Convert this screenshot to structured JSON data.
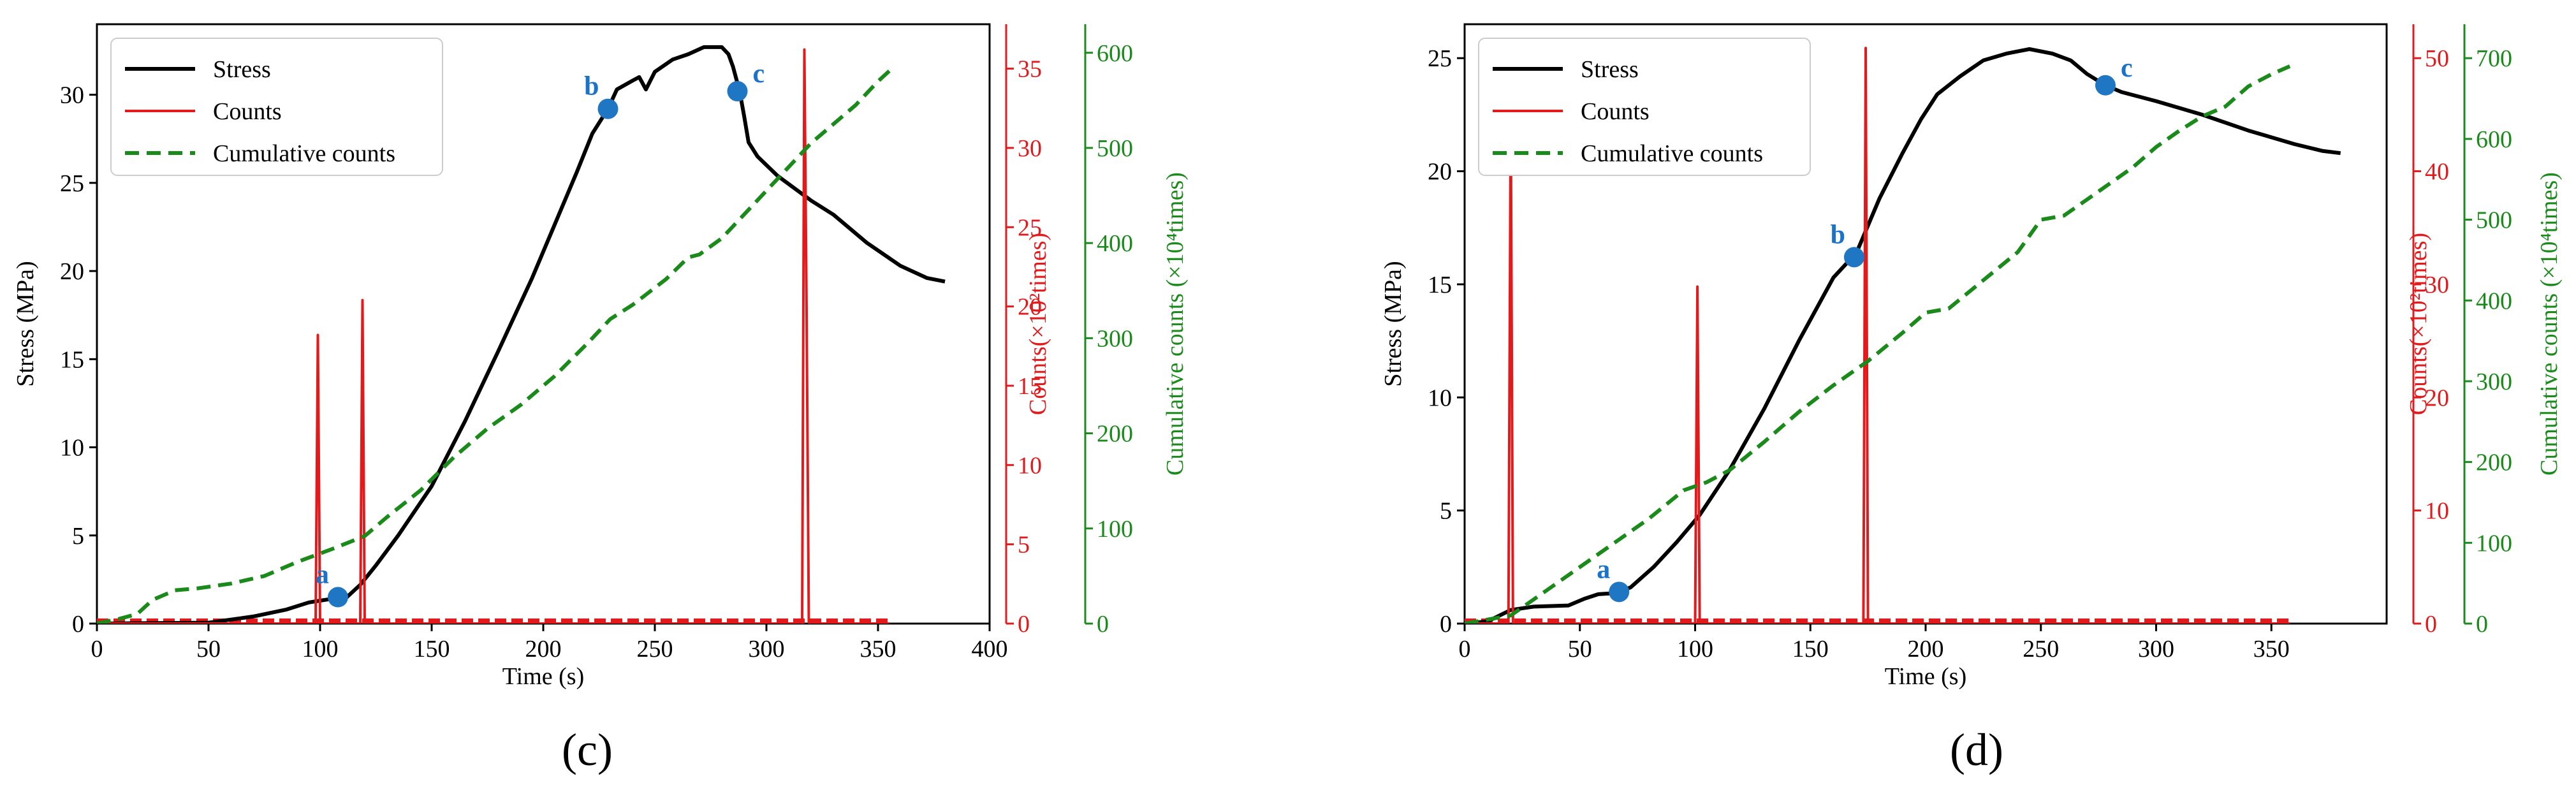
{
  "panel_labels": [
    "(c)",
    "(d)"
  ],
  "colors": {
    "stress": "#000000",
    "counts": "#e31a1c",
    "cumulative": "#1a8a1a",
    "point": "#1f77c4"
  },
  "chart_data": [
    {
      "type": "line",
      "panel": "(c)",
      "xlabel": "Time (s)",
      "ylabel": "Stress (MPa)",
      "y2label": "Counts(×10²times)",
      "y3label": "Cumulative counts (×10⁴times)",
      "xlim": [
        0,
        400
      ],
      "ylim": [
        0,
        34
      ],
      "y2lim": [
        0,
        37.8
      ],
      "y3lim": [
        0,
        630
      ],
      "xticks": [
        0,
        50,
        100,
        150,
        200,
        250,
        300,
        350,
        400
      ],
      "yticks": [
        0,
        5,
        10,
        15,
        20,
        25,
        30
      ],
      "y2ticks": [
        0,
        5,
        10,
        15,
        20,
        25,
        30,
        35
      ],
      "y3ticks": [
        0,
        100,
        200,
        300,
        400,
        500,
        600
      ],
      "legend": {
        "placement": "top-left",
        "entries": [
          "Stress",
          "Counts",
          "Cumulative counts"
        ]
      },
      "series": [
        {
          "name": "Stress",
          "axis": "y",
          "points": [
            [
              0,
              0
            ],
            [
              50,
              0.05
            ],
            [
              70,
              0.4
            ],
            [
              85,
              0.8
            ],
            [
              95,
              1.2
            ],
            [
              105,
              1.4
            ],
            [
              112,
              1.5
            ],
            [
              118,
              2.2
            ],
            [
              125,
              3.3
            ],
            [
              135,
              5.0
            ],
            [
              150,
              7.8
            ],
            [
              165,
              11.5
            ],
            [
              180,
              15.5
            ],
            [
              195,
              19.6
            ],
            [
              205,
              22.6
            ],
            [
              215,
              25.6
            ],
            [
              222,
              27.8
            ],
            [
              229,
              29.2
            ],
            [
              233,
              30.3
            ],
            [
              240,
              30.8
            ],
            [
              243,
              31.0
            ],
            [
              246,
              30.3
            ],
            [
              250,
              31.3
            ],
            [
              258,
              32.0
            ],
            [
              265,
              32.3
            ],
            [
              272,
              32.7
            ],
            [
              280,
              32.7
            ],
            [
              283,
              32.3
            ],
            [
              285,
              31.6
            ],
            [
              288,
              30.2
            ],
            [
              290,
              28.8
            ],
            [
              292,
              27.3
            ],
            [
              296,
              26.5
            ],
            [
              305,
              25.4
            ],
            [
              320,
              24.0
            ],
            [
              330,
              23.2
            ],
            [
              345,
              21.6
            ],
            [
              360,
              20.3
            ],
            [
              372,
              19.6
            ],
            [
              380,
              19.4
            ]
          ]
        },
        {
          "name": "Counts",
          "axis": "y2",
          "points": [
            [
              0,
              0
            ],
            [
              98,
              0
            ],
            [
              99,
              18.2
            ],
            [
              100,
              0
            ],
            [
              118,
              0
            ],
            [
              119,
              20.4
            ],
            [
              120,
              0
            ],
            [
              316,
              0
            ],
            [
              317,
              36.2
            ],
            [
              318,
              19.7
            ],
            [
              319,
              0
            ],
            [
              355,
              0
            ]
          ]
        },
        {
          "name": "Cumulative counts",
          "axis": "y3",
          "points": [
            [
              0,
              0
            ],
            [
              10,
              5
            ],
            [
              18,
              10
            ],
            [
              25,
              25
            ],
            [
              35,
              35
            ],
            [
              45,
              37
            ],
            [
              60,
              42
            ],
            [
              75,
              50
            ],
            [
              90,
              65
            ],
            [
              105,
              78
            ],
            [
              120,
              92
            ],
            [
              130,
              112
            ],
            [
              145,
              140
            ],
            [
              160,
              175
            ],
            [
              175,
              205
            ],
            [
              190,
              230
            ],
            [
              205,
              260
            ],
            [
              220,
              295
            ],
            [
              230,
              320
            ],
            [
              240,
              335
            ],
            [
              255,
              362
            ],
            [
              265,
              385
            ],
            [
              270,
              388
            ],
            [
              280,
              405
            ],
            [
              290,
              430
            ],
            [
              300,
              455
            ],
            [
              310,
              480
            ],
            [
              320,
              505
            ],
            [
              330,
              525
            ],
            [
              340,
              545
            ],
            [
              350,
              570
            ],
            [
              357,
              585
            ]
          ]
        }
      ],
      "annotations": [
        {
          "label": "a",
          "x": 108,
          "y": 1.5
        },
        {
          "label": "b",
          "x": 229,
          "y": 29.2
        },
        {
          "label": "c",
          "x": 287,
          "y": 30.2
        }
      ]
    },
    {
      "type": "line",
      "panel": "(d)",
      "xlabel": "Time (s)",
      "ylabel": "Stress (MPa)",
      "y2label": "Counts(×10²times)",
      "y3label": "Cumulative counts (×10⁴times)",
      "xlim": [
        0,
        400
      ],
      "ylim": [
        0,
        26.5
      ],
      "y2lim": [
        0,
        53
      ],
      "y3lim": [
        0,
        742
      ],
      "xticks": [
        0,
        50,
        100,
        150,
        200,
        250,
        300,
        350
      ],
      "yticks": [
        0,
        5,
        10,
        15,
        20,
        25
      ],
      "y2ticks": [
        0,
        10,
        20,
        30,
        40,
        50
      ],
      "y3ticks": [
        0,
        100,
        200,
        300,
        400,
        500,
        600,
        700
      ],
      "legend": {
        "placement": "top-left",
        "entries": [
          "Stress",
          "Counts",
          "Cumulative counts"
        ]
      },
      "series": [
        {
          "name": "Stress",
          "axis": "y",
          "points": [
            [
              0,
              0
            ],
            [
              10,
              0.1
            ],
            [
              20,
              0.6
            ],
            [
              30,
              0.75
            ],
            [
              45,
              0.8
            ],
            [
              52,
              1.1
            ],
            [
              58,
              1.3
            ],
            [
              66,
              1.35
            ],
            [
              72,
              1.6
            ],
            [
              82,
              2.5
            ],
            [
              92,
              3.6
            ],
            [
              102,
              4.8
            ],
            [
              115,
              6.8
            ],
            [
              130,
              9.5
            ],
            [
              145,
              12.5
            ],
            [
              160,
              15.3
            ],
            [
              170,
              16.4
            ],
            [
              180,
              18.8
            ],
            [
              190,
              20.8
            ],
            [
              198,
              22.3
            ],
            [
              205,
              23.4
            ],
            [
              215,
              24.2
            ],
            [
              225,
              24.9
            ],
            [
              235,
              25.2
            ],
            [
              245,
              25.4
            ],
            [
              255,
              25.2
            ],
            [
              263,
              24.9
            ],
            [
              270,
              24.3
            ],
            [
              278,
              23.8
            ],
            [
              285,
              23.5
            ],
            [
              300,
              23.1
            ],
            [
              320,
              22.5
            ],
            [
              340,
              21.8
            ],
            [
              360,
              21.2
            ],
            [
              372,
              20.9
            ],
            [
              380,
              20.8
            ]
          ]
        },
        {
          "name": "Counts",
          "axis": "y2",
          "points": [
            [
              0,
              0
            ],
            [
              19,
              0
            ],
            [
              20,
              45.6
            ],
            [
              21,
              0
            ],
            [
              100,
              0
            ],
            [
              101,
              29.8
            ],
            [
              102,
              0
            ],
            [
              173,
              0
            ],
            [
              174,
              50.9
            ],
            [
              175,
              0
            ],
            [
              358,
              0
            ]
          ]
        },
        {
          "name": "Cumulative counts",
          "axis": "y3",
          "points": [
            [
              0,
              0
            ],
            [
              20,
              10
            ],
            [
              40,
              50
            ],
            [
              60,
              90
            ],
            [
              80,
              130
            ],
            [
              95,
              165
            ],
            [
              105,
              175
            ],
            [
              115,
              190
            ],
            [
              130,
              225
            ],
            [
              145,
              262
            ],
            [
              160,
              295
            ],
            [
              175,
              325
            ],
            [
              190,
              360
            ],
            [
              200,
              385
            ],
            [
              210,
              390
            ],
            [
              225,
              425
            ],
            [
              240,
              460
            ],
            [
              250,
              500
            ],
            [
              260,
              505
            ],
            [
              270,
              525
            ],
            [
              280,
              545
            ],
            [
              290,
              565
            ],
            [
              300,
              590
            ],
            [
              310,
              610
            ],
            [
              320,
              628
            ],
            [
              330,
              640
            ],
            [
              340,
              665
            ],
            [
              350,
              680
            ],
            [
              358,
              690
            ]
          ]
        }
      ],
      "annotations": [
        {
          "label": "a",
          "x": 67,
          "y": 1.4
        },
        {
          "label": "b",
          "x": 169,
          "y": 16.2
        },
        {
          "label": "c",
          "x": 278,
          "y": 23.8
        }
      ]
    }
  ]
}
